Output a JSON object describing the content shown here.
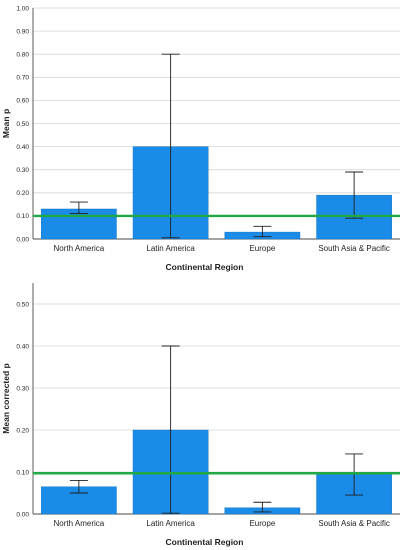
{
  "colors": {
    "bar": "#1a8be6",
    "bar_stroke": "#0f6fbf",
    "reference_line": "#1fa843",
    "gridline": "#d6d6d6",
    "axis": "#4a4a4a",
    "error_bar": "#1f1f1f"
  },
  "chart_data": [
    {
      "type": "bar",
      "categories": [
        "North America",
        "Latin America",
        "Europe",
        "South Asia & Pacific"
      ],
      "values": [
        0.13,
        0.4,
        0.03,
        0.19
      ],
      "error_low": [
        0.11,
        0.005,
        0.01,
        0.09
      ],
      "error_high": [
        0.16,
        0.8,
        0.055,
        0.29
      ],
      "reference_line": 0.1,
      "xlabel": "Continental Region",
      "ylabel": "Mean p",
      "ylim": [
        0,
        1.0
      ],
      "yticks": [
        "0.00",
        "0.10",
        "0.20",
        "0.30",
        "0.40",
        "0.50",
        "0.60",
        "0.70",
        "0.80",
        "0.90",
        "1.00"
      ],
      "grid": true,
      "legend": "none"
    },
    {
      "type": "bar",
      "categories": [
        "North America",
        "Latin America",
        "Europe",
        "South Asia & Pacific"
      ],
      "values": [
        0.065,
        0.2,
        0.015,
        0.095
      ],
      "error_low": [
        0.05,
        0.002,
        0.005,
        0.045
      ],
      "error_high": [
        0.08,
        0.4,
        0.028,
        0.143
      ],
      "reference_line": 0.097,
      "xlabel": "Continental Region",
      "ylabel": "Mean corrected p",
      "ylim": [
        0,
        0.55
      ],
      "yticks": [
        "0.00",
        "0.10",
        "0.20",
        "0.30",
        "0.40",
        "0.50"
      ],
      "grid": true,
      "legend": "none"
    }
  ]
}
